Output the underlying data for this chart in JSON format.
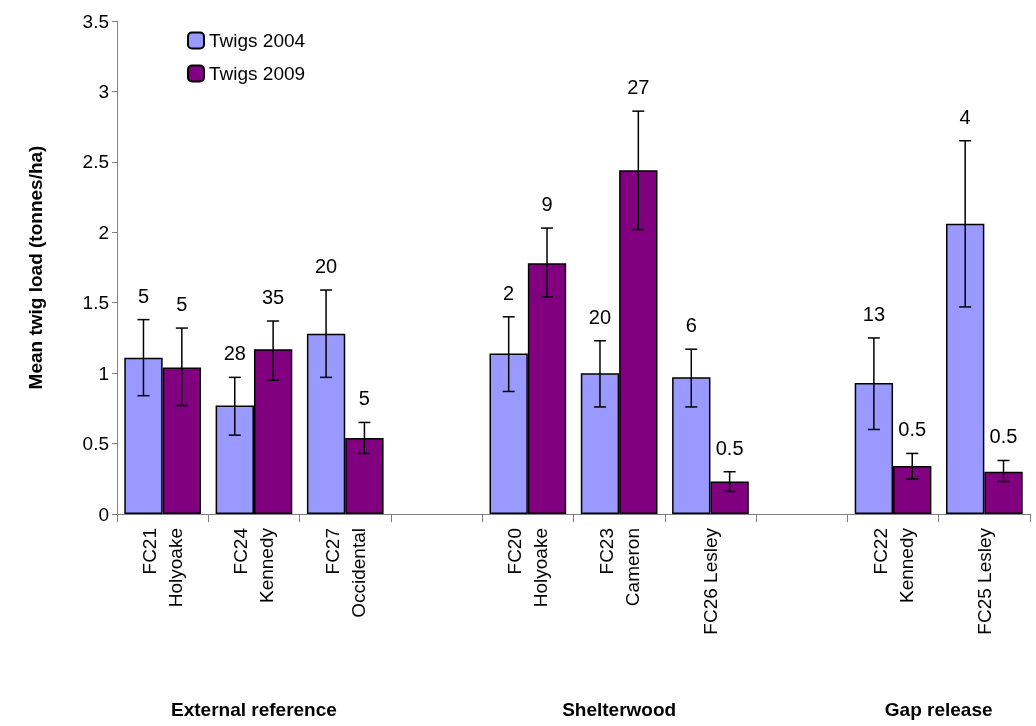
{
  "chart_data": {
    "type": "bar",
    "ylabel": "Mean twig load (tonnes/ha)",
    "categories": [
      "FC21\nHolyoake",
      "FC24\nKennedy",
      "FC27\nOccidental",
      null,
      "FC20\nHolyoake",
      "FC23\nCameron",
      "FC26 Lesley",
      null,
      "FC22\nKennedy",
      "FC25 Lesley"
    ],
    "series": [
      {
        "name": "Twigs 2004",
        "color": "#9999ff",
        "values": [
          1.11,
          0.77,
          1.28,
          null,
          1.14,
          1.0,
          0.97,
          null,
          0.93,
          2.06
        ],
        "errors": [
          [
            0.84,
            1.38
          ],
          [
            0.56,
            0.97
          ],
          [
            0.97,
            1.59
          ],
          null,
          [
            0.87,
            1.4
          ],
          [
            0.76,
            1.23
          ],
          [
            0.76,
            1.17
          ],
          null,
          [
            0.6,
            1.25
          ],
          [
            1.47,
            2.65
          ]
        ]
      },
      {
        "name": "Twigs 2009",
        "color": "#800080",
        "values": [
          1.04,
          1.17,
          0.54,
          null,
          1.78,
          2.44,
          0.23,
          null,
          0.34,
          0.3
        ],
        "errors": [
          [
            0.77,
            1.32
          ],
          [
            0.95,
            1.37
          ],
          [
            0.43,
            0.65
          ],
          null,
          [
            1.54,
            2.03
          ],
          [
            2.02,
            2.86
          ],
          [
            0.16,
            0.3
          ],
          null,
          [
            0.25,
            0.43
          ],
          [
            0.23,
            0.38
          ]
        ]
      }
    ],
    "ylim": [
      0,
      3.5
    ],
    "yticks": [
      0,
      0.5,
      1,
      1.5,
      2,
      2.5,
      3,
      3.5
    ],
    "grid": false,
    "legend": "top left",
    "annotations": [
      "5",
      "5",
      "28",
      "35",
      "20",
      "5",
      "2",
      "9",
      "20",
      "27",
      "6",
      "0.5",
      "13",
      "0.5",
      "4",
      "0.5",
      "External reference",
      "Shelterwood",
      "Gap release"
    ]
  }
}
